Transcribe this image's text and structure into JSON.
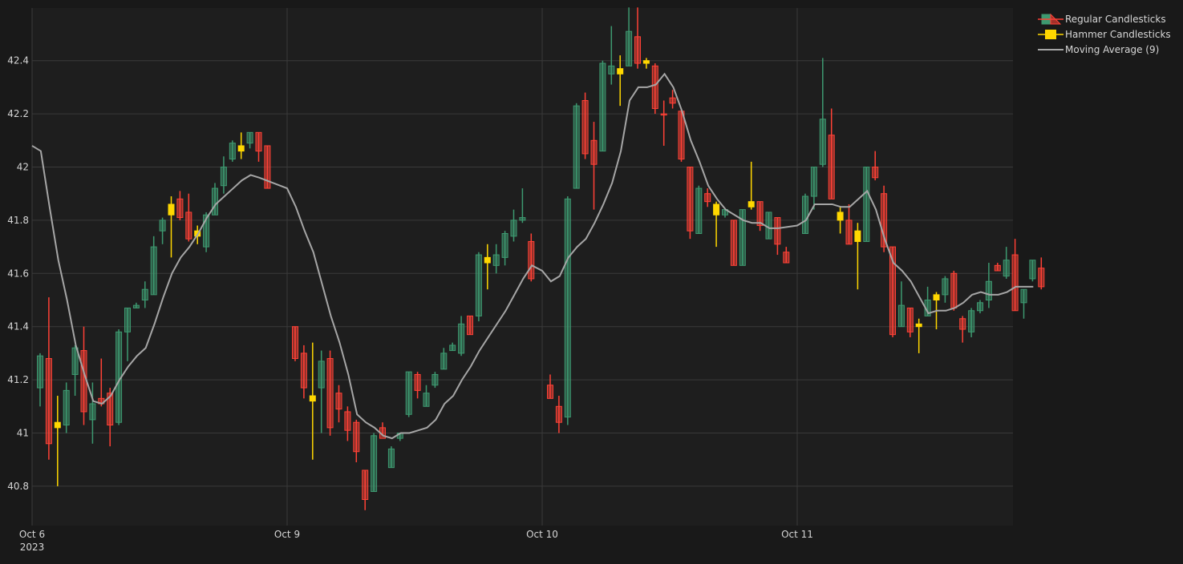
{
  "chart_data": {
    "type": "candlestick",
    "title": "",
    "xlabel": "",
    "ylabel": "",
    "ylim": [
      40.7,
      42.6
    ],
    "y_ticks": [
      40.8,
      41,
      41.2,
      41.4,
      41.6,
      41.8,
      42,
      42.2,
      42.4
    ],
    "y_tick_labels": [
      "40.8",
      "41",
      "41.2",
      "41.4",
      "41.6",
      "41.8",
      "42",
      "42.2",
      "42.4"
    ],
    "x_ticks": [
      {
        "label": "Oct 6",
        "sublabel": "2023"
      },
      {
        "label": "Oct 9",
        "sublabel": ""
      },
      {
        "label": "Oct 10",
        "sublabel": ""
      },
      {
        "label": "Oct 11",
        "sublabel": ""
      }
    ],
    "colors": {
      "increasing": "#3d9970",
      "decreasing": "#ff4136",
      "hammer": "#ffd700",
      "moving_average": "#a6a6a6",
      "plot_bg": "#1e1e1e",
      "paper_bg": "#191919",
      "grid": "#3a3a3a"
    },
    "grid": true,
    "legend_position": "top-right",
    "legend": [
      {
        "name": "Regular Candlesticks",
        "kind": "candle"
      },
      {
        "name": "Hammer Candlesticks",
        "kind": "hammer"
      },
      {
        "name": "Moving Average (9)",
        "kind": "line"
      }
    ],
    "days": [
      {
        "candles": [
          [
            41.17,
            41.3,
            41.1,
            41.29,
            "u"
          ],
          [
            41.28,
            41.51,
            40.9,
            40.96,
            "d"
          ],
          [
            41.02,
            41.14,
            40.8,
            41.04,
            "h"
          ],
          [
            41.03,
            41.19,
            41.0,
            41.16,
            "u"
          ],
          [
            41.22,
            41.33,
            41.14,
            41.32,
            "u"
          ],
          [
            41.31,
            41.4,
            41.03,
            41.08,
            "d"
          ],
          [
            41.05,
            41.19,
            40.96,
            41.11,
            "u"
          ],
          [
            41.13,
            41.28,
            41.1,
            41.11,
            "d"
          ],
          [
            41.15,
            41.17,
            40.95,
            41.03,
            "d"
          ],
          [
            41.04,
            41.39,
            41.03,
            41.38,
            "u"
          ],
          [
            41.38,
            41.47,
            41.27,
            41.47,
            "u"
          ],
          [
            41.48,
            41.49,
            41.47,
            41.47,
            "u"
          ],
          [
            41.5,
            41.57,
            41.47,
            41.54,
            "u"
          ],
          [
            41.52,
            41.74,
            41.52,
            41.7,
            "u"
          ],
          [
            41.76,
            41.81,
            41.71,
            41.8,
            "u"
          ],
          [
            41.86,
            41.89,
            41.66,
            41.82,
            "h"
          ],
          [
            41.81,
            41.91,
            41.8,
            41.88,
            "d"
          ],
          [
            41.83,
            41.9,
            41.72,
            41.73,
            "d"
          ],
          [
            41.76,
            41.78,
            41.71,
            41.74,
            "h"
          ],
          [
            41.7,
            41.83,
            41.68,
            41.82,
            "u"
          ],
          [
            41.82,
            41.94,
            41.82,
            41.92,
            "u"
          ],
          [
            41.93,
            42.04,
            41.9,
            42.0,
            "u"
          ],
          [
            42.03,
            42.1,
            42.02,
            42.09,
            "u"
          ],
          [
            42.08,
            42.13,
            42.03,
            42.06,
            "h"
          ],
          [
            42.09,
            42.13,
            42.07,
            42.13,
            "u"
          ],
          [
            42.13,
            42.13,
            42.02,
            42.06,
            "d"
          ],
          [
            42.08,
            42.08,
            41.92,
            41.92,
            "d"
          ]
        ],
        "ma": [
          42.08,
          42.06,
          41.85,
          41.65,
          41.5,
          41.33,
          41.22,
          41.12,
          41.11,
          41.14,
          41.2,
          41.25,
          41.29,
          41.32,
          41.41,
          41.51,
          41.6,
          41.66,
          41.7,
          41.75,
          41.81,
          41.86,
          41.89,
          41.92,
          41.95,
          41.97,
          41.96
        ]
      },
      {
        "candles": [
          [
            41.4,
            41.4,
            41.27,
            41.28,
            "d"
          ],
          [
            41.3,
            41.33,
            41.13,
            41.17,
            "d"
          ],
          [
            41.12,
            41.34,
            40.9,
            41.14,
            "h"
          ],
          [
            41.17,
            41.31,
            41.0,
            41.27,
            "u"
          ],
          [
            41.28,
            41.31,
            40.99,
            41.02,
            "d"
          ],
          [
            41.15,
            41.18,
            41.04,
            41.09,
            "d"
          ],
          [
            41.08,
            41.1,
            40.97,
            41.01,
            "d"
          ],
          [
            41.04,
            41.05,
            40.89,
            40.93,
            "d"
          ],
          [
            40.86,
            40.86,
            40.71,
            40.75,
            "d"
          ],
          [
            40.78,
            41.0,
            40.78,
            40.99,
            "u"
          ],
          [
            41.02,
            41.04,
            40.99,
            40.98,
            "d"
          ],
          [
            40.87,
            40.95,
            40.87,
            40.94,
            "u"
          ],
          [
            40.98,
            41.0,
            40.97,
            41.0,
            "u"
          ],
          [
            41.07,
            41.23,
            41.06,
            41.23,
            "u"
          ],
          [
            41.22,
            41.23,
            41.13,
            41.16,
            "d"
          ],
          [
            41.1,
            41.18,
            41.1,
            41.15,
            "u"
          ],
          [
            41.18,
            41.23,
            41.17,
            41.22,
            "u"
          ],
          [
            41.24,
            41.32,
            41.24,
            41.3,
            "u"
          ],
          [
            41.31,
            41.34,
            41.31,
            41.33,
            "u"
          ],
          [
            41.3,
            41.44,
            41.29,
            41.41,
            "u"
          ],
          [
            41.44,
            41.44,
            41.37,
            41.37,
            "d"
          ],
          [
            41.44,
            41.68,
            41.42,
            41.67,
            "u"
          ],
          [
            41.66,
            41.71,
            41.54,
            41.64,
            "h"
          ],
          [
            41.63,
            41.71,
            41.6,
            41.67,
            "u"
          ],
          [
            41.66,
            41.76,
            41.63,
            41.75,
            "u"
          ],
          [
            41.74,
            41.84,
            41.72,
            41.8,
            "u"
          ],
          [
            41.8,
            41.92,
            41.79,
            41.81,
            "u"
          ],
          [
            41.72,
            41.75,
            41.57,
            41.58,
            "d"
          ]
        ],
        "ma": [
          41.92,
          41.85,
          41.76,
          41.68,
          41.56,
          41.44,
          41.34,
          41.22,
          41.07,
          41.04,
          41.02,
          40.99,
          40.98,
          41.0,
          41.0,
          41.01,
          41.02,
          41.05,
          41.11,
          41.14,
          41.2,
          41.25,
          41.31,
          41.36,
          41.41,
          41.46,
          41.52,
          41.58,
          41.63
        ]
      },
      {
        "candles": [
          [
            41.18,
            41.22,
            41.13,
            41.13,
            "d"
          ],
          [
            41.1,
            41.14,
            41.0,
            41.04,
            "d"
          ],
          [
            41.06,
            41.89,
            41.03,
            41.88,
            "u"
          ],
          [
            41.92,
            42.24,
            41.92,
            42.23,
            "u"
          ],
          [
            42.25,
            42.28,
            42.03,
            42.05,
            "d"
          ],
          [
            42.1,
            42.17,
            41.84,
            42.01,
            "d"
          ],
          [
            42.06,
            42.4,
            42.06,
            42.39,
            "u"
          ],
          [
            42.35,
            42.53,
            42.31,
            42.38,
            "u"
          ],
          [
            42.35,
            42.42,
            42.23,
            42.37,
            "h"
          ],
          [
            42.38,
            42.6,
            42.38,
            42.51,
            "u"
          ],
          [
            42.49,
            42.6,
            42.37,
            42.39,
            "d"
          ],
          [
            42.39,
            42.41,
            42.37,
            42.4,
            "h"
          ],
          [
            42.38,
            42.39,
            42.2,
            42.22,
            "d"
          ],
          [
            42.2,
            42.25,
            42.08,
            42.2,
            "d"
          ],
          [
            42.26,
            42.29,
            42.22,
            42.24,
            "d"
          ],
          [
            42.21,
            42.22,
            42.02,
            42.03,
            "d"
          ],
          [
            42.0,
            42.0,
            41.73,
            41.76,
            "d"
          ],
          [
            41.75,
            41.93,
            41.75,
            41.92,
            "u"
          ],
          [
            41.9,
            41.92,
            41.85,
            41.87,
            "d"
          ],
          [
            41.86,
            41.87,
            41.7,
            41.82,
            "h"
          ],
          [
            41.82,
            41.84,
            41.81,
            41.84,
            "u"
          ],
          [
            41.8,
            41.8,
            41.63,
            41.63,
            "d"
          ],
          [
            41.63,
            41.84,
            41.63,
            41.84,
            "u"
          ],
          [
            41.85,
            42.02,
            41.84,
            41.87,
            "h"
          ],
          [
            41.87,
            41.87,
            41.76,
            41.78,
            "d"
          ],
          [
            41.83,
            41.83,
            41.73,
            41.73,
            "u"
          ],
          [
            41.81,
            41.81,
            41.67,
            41.71,
            "d"
          ],
          [
            41.68,
            41.7,
            41.64,
            41.64,
            "d"
          ]
        ],
        "ma": [
          41.61,
          41.57,
          41.59,
          41.66,
          41.7,
          41.73,
          41.79,
          41.86,
          41.94,
          42.06,
          42.25,
          42.3,
          42.3,
          42.31,
          42.35,
          42.3,
          42.21,
          42.1,
          42.02,
          41.93,
          41.88,
          41.84,
          41.82,
          41.8,
          41.79,
          41.79,
          41.77,
          41.77
        ]
      },
      {
        "candles": [
          [
            41.75,
            41.9,
            41.75,
            41.89,
            "u"
          ],
          [
            41.89,
            42.0,
            41.84,
            42.0,
            "u"
          ],
          [
            42.01,
            42.41,
            42.0,
            42.18,
            "u"
          ],
          [
            42.12,
            42.22,
            41.88,
            41.88,
            "d"
          ],
          [
            41.83,
            41.85,
            41.75,
            41.8,
            "h"
          ],
          [
            41.8,
            41.86,
            41.71,
            41.71,
            "d"
          ],
          [
            41.76,
            41.79,
            41.54,
            41.72,
            "h"
          ],
          [
            41.72,
            42.0,
            41.72,
            42.0,
            "u"
          ],
          [
            42.0,
            42.06,
            41.95,
            41.96,
            "d"
          ],
          [
            41.9,
            41.93,
            41.68,
            41.7,
            "d"
          ],
          [
            41.7,
            41.7,
            41.36,
            41.37,
            "d"
          ],
          [
            41.4,
            41.57,
            41.4,
            41.48,
            "u"
          ],
          [
            41.47,
            41.47,
            41.36,
            41.38,
            "d"
          ],
          [
            41.4,
            41.43,
            41.3,
            41.41,
            "h"
          ],
          [
            41.44,
            41.55,
            41.44,
            41.5,
            "u"
          ],
          [
            41.5,
            41.53,
            41.39,
            41.52,
            "h"
          ],
          [
            41.52,
            41.59,
            41.49,
            41.58,
            "u"
          ],
          [
            41.6,
            41.61,
            41.46,
            41.47,
            "d"
          ],
          [
            41.43,
            41.44,
            41.34,
            41.39,
            "d"
          ],
          [
            41.38,
            41.47,
            41.36,
            41.46,
            "u"
          ],
          [
            41.46,
            41.5,
            41.45,
            41.49,
            "u"
          ],
          [
            41.5,
            41.64,
            41.47,
            41.57,
            "u"
          ],
          [
            41.63,
            41.64,
            41.61,
            41.61,
            "d"
          ],
          [
            41.59,
            41.7,
            41.58,
            41.65,
            "u"
          ],
          [
            41.67,
            41.73,
            41.46,
            41.46,
            "d"
          ],
          [
            41.49,
            41.54,
            41.43,
            41.54,
            "u"
          ],
          [
            41.58,
            41.65,
            41.57,
            41.65,
            "u"
          ],
          [
            41.62,
            41.66,
            41.54,
            41.55,
            "d"
          ]
        ],
        "ma": [
          41.78,
          41.8,
          41.86,
          41.86,
          41.86,
          41.85,
          41.85,
          41.88,
          41.91,
          41.84,
          41.73,
          41.64,
          41.61,
          41.57,
          41.51,
          41.45,
          41.46,
          41.46,
          41.47,
          41.49,
          41.52,
          41.53,
          41.52,
          41.52,
          41.53,
          41.55,
          41.55,
          41.55
        ]
      }
    ]
  }
}
